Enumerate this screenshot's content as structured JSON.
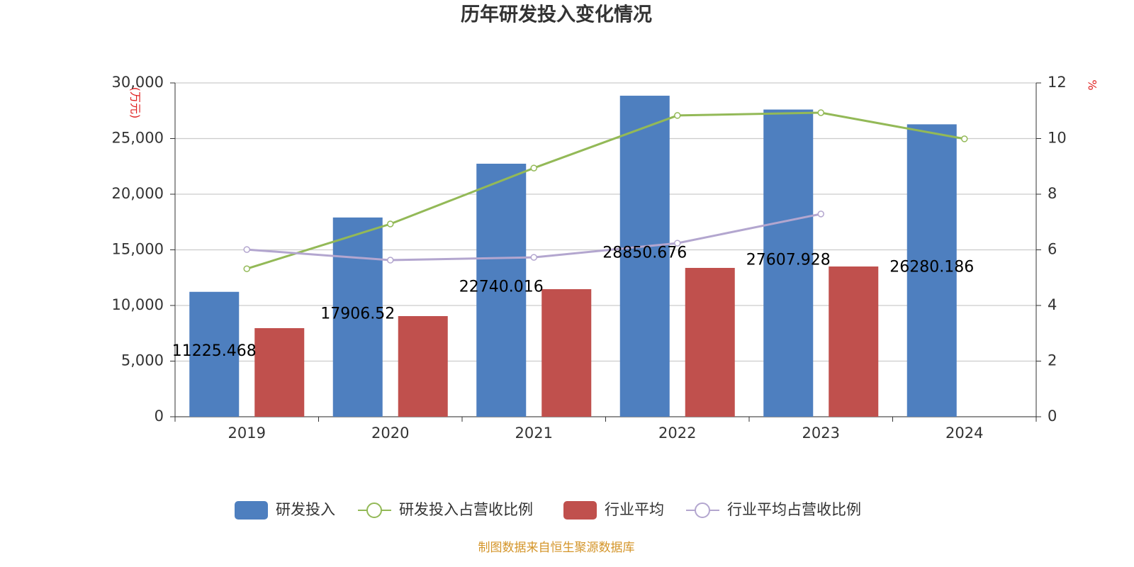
{
  "chart_data": {
    "type": "bar",
    "title": "历年研发投入变化情况",
    "y_label": "(万元)",
    "y2_label": "%",
    "source": "制图数据来自恒生聚源数据库",
    "categories": [
      "2019",
      "2020",
      "2021",
      "2022",
      "2023",
      "2024"
    ],
    "series": [
      {
        "name": "研发投入",
        "type": "bar",
        "color": "#4e7fbf",
        "values": [
          11225.468,
          17906.52,
          22740.016,
          28850.676,
          27607.928,
          26280.186
        ],
        "data_labels": true
      },
      {
        "name": "研发投入占营收比例",
        "type": "line",
        "axis": "y2",
        "color": "#93b957",
        "values": [
          5.32,
          6.93,
          8.94,
          10.83,
          10.93,
          9.99
        ]
      },
      {
        "name": "行业平均",
        "type": "bar",
        "color": "#c0504d",
        "values": [
          7962,
          9045,
          11465,
          13376,
          13503,
          null
        ]
      },
      {
        "name": "行业平均占营收比例",
        "type": "line",
        "axis": "y2",
        "color": "#b3a6cf",
        "values": [
          6.01,
          5.63,
          5.73,
          6.24,
          7.29,
          null
        ]
      }
    ],
    "ylim": [
      0,
      30000
    ],
    "yticks": [
      0,
      {
        "value": 5000,
        "label": "5,000"
      },
      {
        "value": 10000,
        "label": "10,000"
      },
      {
        "value": 15000,
        "label": "15,000"
      },
      {
        "value": 20000,
        "label": "20,000"
      },
      {
        "value": 25000,
        "label": "25,000"
      },
      {
        "value": 30000,
        "label": "30,000"
      }
    ],
    "y2lim": [
      0,
      12
    ],
    "y2ticks": [
      0,
      2,
      4,
      6,
      8,
      10,
      12
    ],
    "grid": true,
    "legend": "bottom"
  }
}
